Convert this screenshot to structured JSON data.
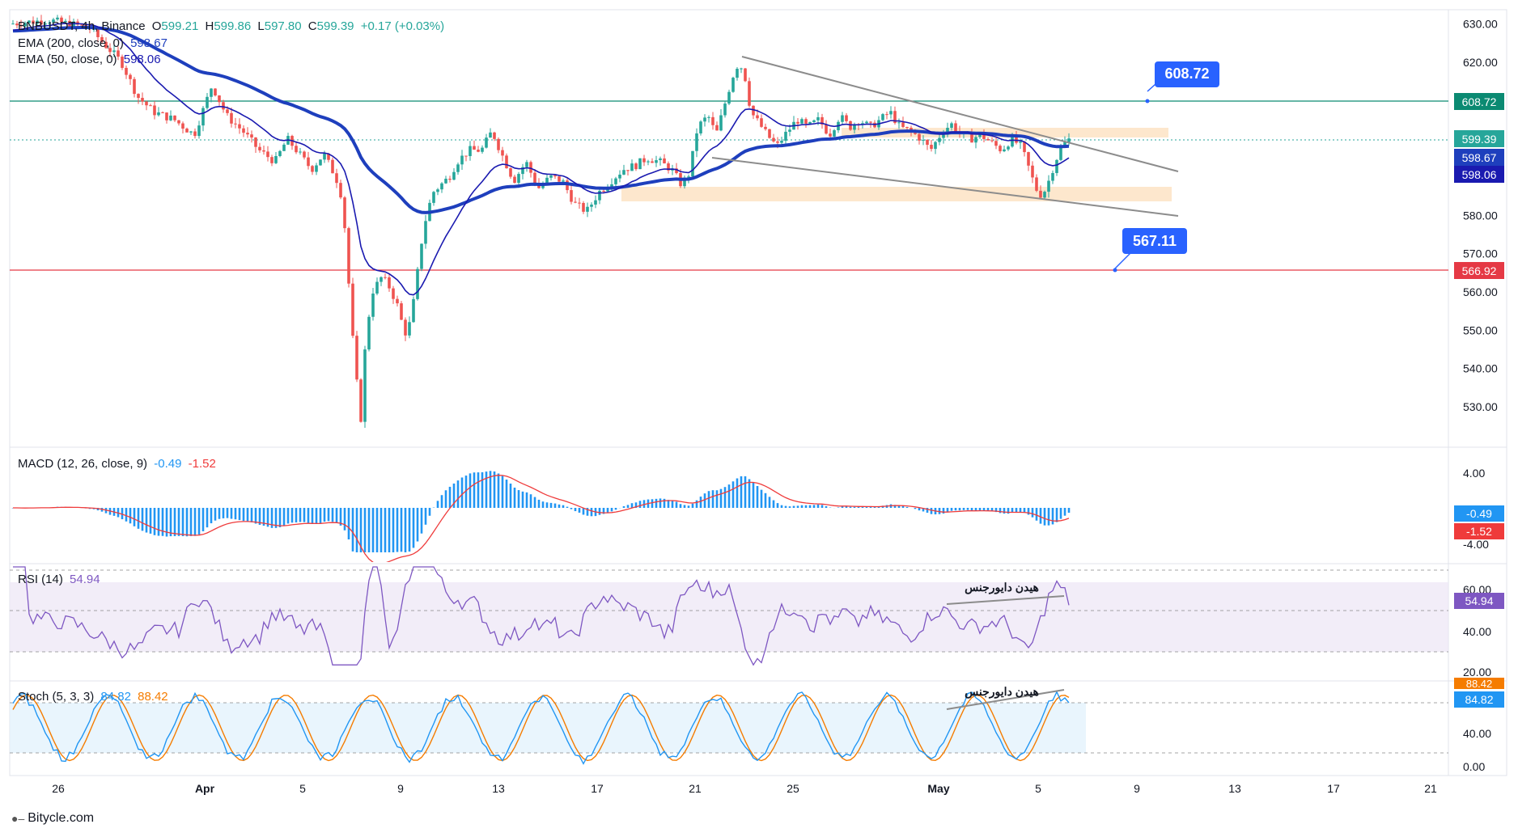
{
  "header": {
    "symbol": "BNBUSDT, 4h, Binance",
    "open_label": "O",
    "open": "599.21",
    "high_label": "H",
    "high": "599.86",
    "low_label": "L",
    "low": "597.80",
    "close_label": "C",
    "close": "599.39",
    "change": "+0.17 (+0.03%)",
    "ema200_label": "EMA (200, close, 0)",
    "ema200_value": "598.67",
    "ema50_label": "EMA (50, close, 0)",
    "ema50_value": "598.06"
  },
  "watermark": "Bitycle.com",
  "colors": {
    "up": "#26a69a",
    "down": "#ef5350",
    "ema200": "#1e3fbd",
    "ema50": "#1a1ab0",
    "resistance": "#0b8a72",
    "support": "#e53945",
    "callout": "#2962ff",
    "zone": "#fde3c4",
    "trendline": "#8c8c8c",
    "macd_hist": "#2196f3",
    "macd_signal": "#ef3b3b",
    "rsi": "#7e57c2",
    "stoch_k": "#2196f3",
    "stoch_d": "#f57c00"
  },
  "chart_data": [
    {
      "type": "candlestick",
      "title": "BNBUSDT, 4h, Binance",
      "ylim": [
        522,
        632
      ],
      "y_ticks": [
        "630.00",
        "620.00",
        "610.00",
        "600.00",
        "590.00",
        "580.00",
        "570.00",
        "560.00",
        "550.00",
        "540.00",
        "530.00"
      ],
      "x_tick_labels": [
        "26",
        "Apr",
        "5",
        "9",
        "13",
        "17",
        "21",
        "25",
        "May",
        "5",
        "9",
        "13",
        "17",
        "21"
      ],
      "series": [
        {
          "name": "EMA (200, close, 0)",
          "last": 598.67
        },
        {
          "name": "EMA (50, close, 0)",
          "last": 598.06
        }
      ],
      "levels": [
        {
          "label": "608.72",
          "value": 608.72
        },
        {
          "label": "566.92",
          "value": 566.92
        },
        {
          "label": "567.11",
          "value": 567.11
        }
      ],
      "price_labels": {
        "close": "599.39",
        "ema200": "598.67",
        "ema50": "598.06",
        "resistance": "608.72",
        "support": "566.92"
      },
      "callouts": [
        {
          "text": "608.72"
        },
        {
          "text": "567.11"
        }
      ],
      "patterns": [
        "falling wedge",
        "demand zone 584-587",
        "supply zone 601-603"
      ]
    },
    {
      "type": "histogram",
      "title": "MACD (12, 26, close, 9)",
      "values_label": [
        "-0.49",
        "-1.52"
      ],
      "y_ticks": [
        "4.00",
        "-4.00"
      ],
      "price_labels": {
        "macd": "-0.49",
        "signal": "-1.52"
      }
    },
    {
      "type": "line",
      "title": "RSI (14)",
      "value": "54.94",
      "y_ticks": [
        "60.00",
        "40.00",
        "20.00"
      ],
      "annotation": "هیدن دایورجنس",
      "price_label": "54.94"
    },
    {
      "type": "line",
      "title": "Stoch (5, 3, 3)",
      "values_label": [
        "84.82",
        "88.42"
      ],
      "y_ticks": [
        "40.00",
        "0.00"
      ],
      "annotation": "هیدن دایورجنس",
      "price_labels": {
        "k": "84.82",
        "d": "88.42"
      }
    }
  ]
}
